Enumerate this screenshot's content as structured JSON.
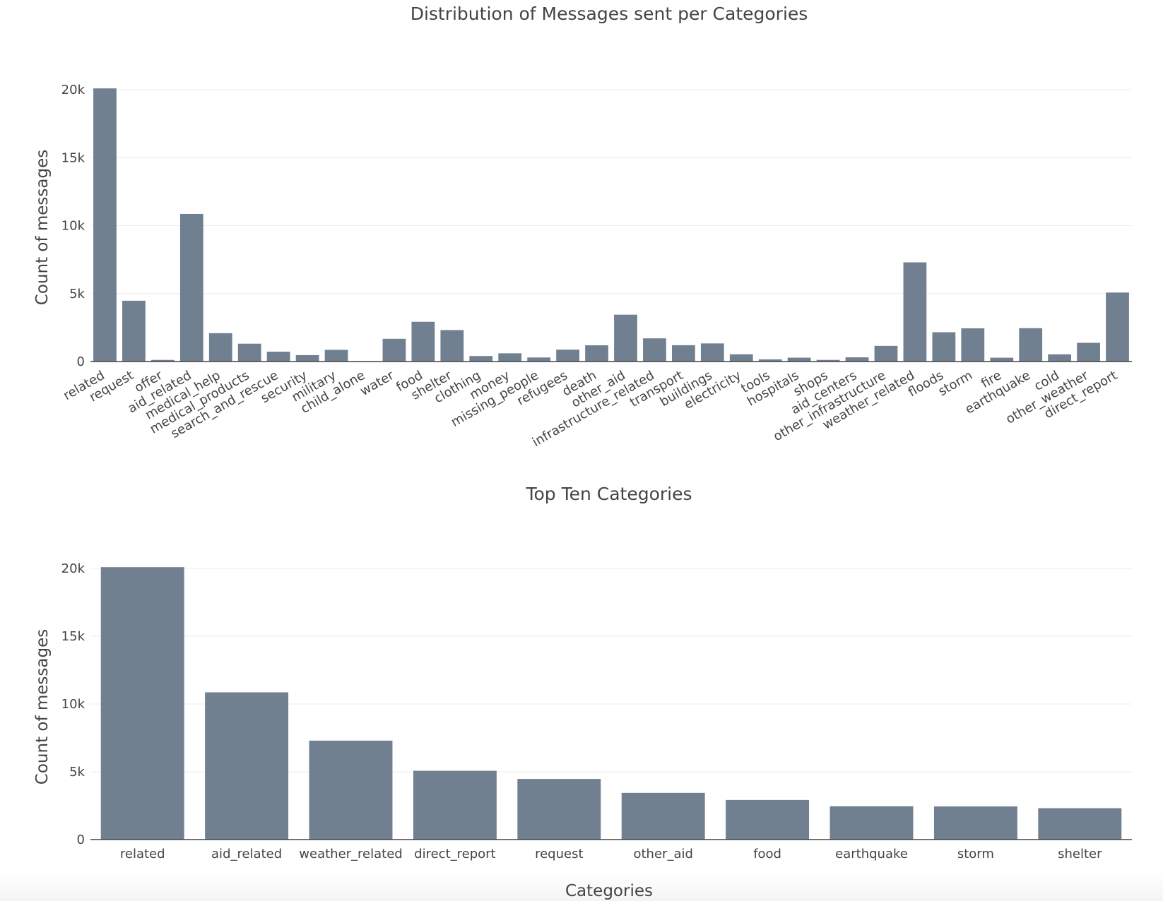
{
  "chart_data": [
    {
      "type": "bar",
      "title": "Distribution of Messages sent per Categories",
      "xlabel": "",
      "ylabel": "Count of messages",
      "ylim": [
        0,
        20000
      ],
      "yticks": [
        0,
        5000,
        10000,
        15000,
        20000
      ],
      "ytick_labels": [
        "0",
        "5k",
        "10k",
        "15k",
        "20k"
      ],
      "grid": true,
      "categories": [
        "related",
        "request",
        "offer",
        "aid_related",
        "medical_help",
        "medical_products",
        "search_and_rescue",
        "security",
        "military",
        "child_alone",
        "water",
        "food",
        "shelter",
        "clothing",
        "money",
        "missing_people",
        "refugees",
        "death",
        "other_aid",
        "infrastructure_related",
        "transport",
        "buildings",
        "electricity",
        "tools",
        "hospitals",
        "shops",
        "aid_centers",
        "other_infrastructure",
        "weather_related",
        "floods",
        "storm",
        "fire",
        "earthquake",
        "cold",
        "other_weather",
        "direct_report"
      ],
      "values": [
        20094,
        4474,
        118,
        10860,
        2084,
        1313,
        724,
        471,
        860,
        0,
        1672,
        2923,
        2314,
        405,
        604,
        298,
        875,
        1194,
        3446,
        1705,
        1201,
        1333,
        532,
        159,
        283,
        120,
        309,
        1151,
        7297,
        2155,
        2443,
        282,
        2455,
        530,
        1376,
        5075
      ],
      "color": "#708090"
    },
    {
      "type": "bar",
      "title": "Top Ten Categories",
      "xlabel": "Categories",
      "ylabel": "Count of messages",
      "ylim": [
        0,
        20000
      ],
      "yticks": [
        0,
        5000,
        10000,
        15000,
        20000
      ],
      "ytick_labels": [
        "0",
        "5k",
        "10k",
        "15k",
        "20k"
      ],
      "grid": true,
      "categories": [
        "related",
        "aid_related",
        "weather_related",
        "direct_report",
        "request",
        "other_aid",
        "food",
        "earthquake",
        "storm",
        "shelter"
      ],
      "values": [
        20094,
        10860,
        7297,
        5075,
        4474,
        3446,
        2923,
        2455,
        2443,
        2314
      ],
      "color": "#708090"
    }
  ]
}
